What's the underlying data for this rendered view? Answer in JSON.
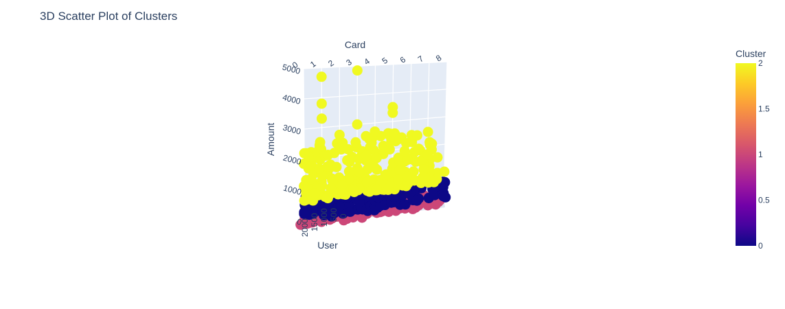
{
  "chart_data": {
    "type": "scatter",
    "title": "3D Scatter Plot of Clusters",
    "axes": {
      "x": {
        "label": "User",
        "ticks": [
          "0",
          "500",
          "1000",
          "1500",
          "2000"
        ]
      },
      "y": {
        "label": "Card",
        "ticks": [
          "0",
          "1",
          "2",
          "3",
          "4",
          "5",
          "6",
          "7",
          "8"
        ],
        "range": [
          0,
          8
        ]
      },
      "z": {
        "label": "Amount",
        "ticks": [
          "0",
          "1000",
          "2000",
          "3000",
          "4000",
          "5000"
        ],
        "range": [
          0,
          5000
        ]
      }
    },
    "colorbar": {
      "title": "Cluster",
      "ticks": [
        "0",
        "0.5",
        "1",
        "1.5",
        "2"
      ],
      "range": [
        0,
        2
      ],
      "colorscale": [
        "#0d0887",
        "#46039f",
        "#7201a8",
        "#9c179e",
        "#bd3786",
        "#d8576b",
        "#ed7953",
        "#fb9f3a",
        "#fdca26",
        "#f0f921"
      ]
    },
    "clusters": [
      {
        "cluster": 0,
        "color": "#0d0887",
        "amount_range": [
          0,
          700
        ],
        "card_range": [
          0,
          8
        ]
      },
      {
        "cluster": 1,
        "color": "#cc4778",
        "amount_range": [
          0,
          300
        ],
        "card_range": [
          0,
          7
        ]
      },
      {
        "cluster": 2,
        "color": "#f0f921",
        "amount_range": [
          600,
          5000
        ],
        "card_range": [
          0,
          8
        ]
      }
    ],
    "notable_points": [
      {
        "cluster": 2,
        "card": 1,
        "amount": 4700
      },
      {
        "cluster": 2,
        "card": 3,
        "amount": 4850
      },
      {
        "cluster": 2,
        "card": 1,
        "amount": 3800
      },
      {
        "cluster": 2,
        "card": 1,
        "amount": 3300
      },
      {
        "cluster": 2,
        "card": 5,
        "amount": 3500
      },
      {
        "cluster": 2,
        "card": 5,
        "amount": 3300
      },
      {
        "cluster": 2,
        "card": 3,
        "amount": 3000
      },
      {
        "cluster": 2,
        "card": 2,
        "amount": 2700
      },
      {
        "cluster": 2,
        "card": 4,
        "amount": 2700
      },
      {
        "cluster": 2,
        "card": 0,
        "amount": 2200
      },
      {
        "cluster": 2,
        "card": 7,
        "amount": 1700
      },
      {
        "cluster": 2,
        "card": 8,
        "amount": 1000
      }
    ]
  }
}
